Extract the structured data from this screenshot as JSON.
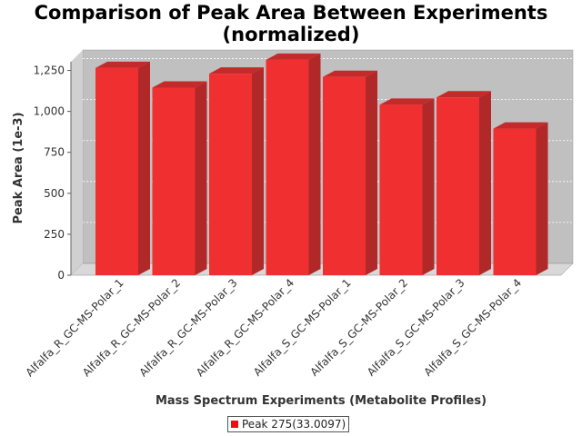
{
  "chart_data": {
    "type": "bar",
    "title_line1": "Comparison of Peak Area Between Experiments",
    "title_line2": "(normalized)",
    "xlabel": "Mass Spectrum Experiments (Metabolite Profiles)",
    "ylabel": "Peak Area (1e-3)",
    "ylim": [
      0,
      1375
    ],
    "yticks": [
      0,
      250,
      500,
      750,
      1000,
      1250
    ],
    "ytick_labels": [
      "0",
      "250",
      "500",
      "750",
      "1,000",
      "1,250"
    ],
    "categories": [
      "Alfalfa_R_GC-MS-Polar_1",
      "Alfalfa_R_GC-MS-Polar_2",
      "Alfalfa_R_GC-MS-Polar_3",
      "Alfalfa_R_GC-MS-Polar_4",
      "Alfalfa_S_GC-MS-Polar_1",
      "Alfalfa_S_GC-MS-Polar_2",
      "Alfalfa_S_GC-MS-Polar_3",
      "Alfalfa_S_GC-MS-Polar_4"
    ],
    "series": [
      {
        "name": "Peak 275(33.0097)",
        "values": [
          1265,
          1145,
          1230,
          1315,
          1210,
          1040,
          1085,
          895
        ]
      }
    ],
    "grid": true,
    "legend_position": "bottom",
    "colors": {
      "bar_front": "#f03030",
      "bar_top": "#c42a2a",
      "bar_side": "#b02828",
      "plot_bg": "#c0c0c0",
      "floor": "#d8d8d8"
    }
  }
}
